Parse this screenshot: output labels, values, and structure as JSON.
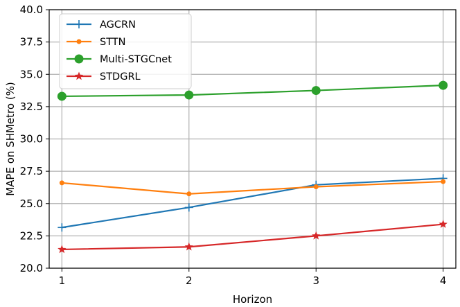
{
  "chart_data": {
    "type": "line",
    "title": "",
    "xlabel": "Horizon",
    "ylabel": "MAPE on SHMetro (%)",
    "x": [
      1,
      2,
      3,
      4
    ],
    "x_ticks": [
      "1",
      "2",
      "3",
      "4"
    ],
    "xlim": [
      0.9,
      4.1
    ],
    "ylim": [
      20.0,
      40.0
    ],
    "y_ticks": [
      "20.0",
      "22.5",
      "25.0",
      "27.5",
      "30.0",
      "32.5",
      "35.0",
      "37.5",
      "40.0"
    ],
    "grid": true,
    "legend_position": "top-left",
    "series": [
      {
        "name": "AGCRN",
        "values": [
          23.15,
          24.7,
          26.45,
          26.95
        ],
        "color": "#1f77b4",
        "marker": "plus"
      },
      {
        "name": "STTN",
        "values": [
          26.6,
          25.75,
          26.3,
          26.7
        ],
        "color": "#ff7f0e",
        "marker": "small-circle"
      },
      {
        "name": "Multi-STGCnet",
        "values": [
          33.3,
          33.4,
          33.75,
          34.15
        ],
        "color": "#2ca02c",
        "marker": "large-circle"
      },
      {
        "name": "STDGRL",
        "values": [
          21.45,
          21.65,
          22.5,
          23.4
        ],
        "color": "#d62728",
        "marker": "star"
      }
    ]
  }
}
